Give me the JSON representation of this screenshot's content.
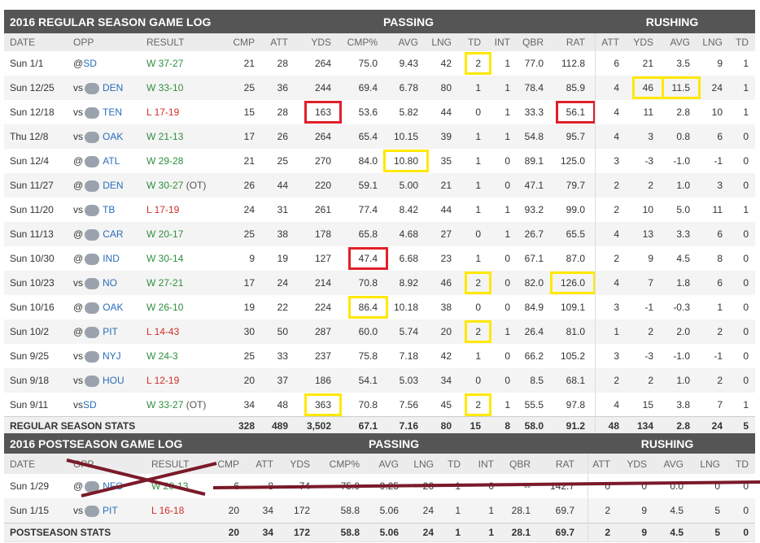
{
  "regular": {
    "title": "2016 REGULAR SEASON GAME LOG",
    "groups": [
      "PASSING",
      "RUSHING"
    ],
    "headers": [
      "DATE",
      "OPP",
      "RESULT",
      "CMP",
      "ATT",
      "YDS",
      "CMP%",
      "AVG",
      "LNG",
      "TD",
      "INT",
      "QBR",
      "RAT",
      "ATT",
      "YDS",
      "AVG",
      "LNG",
      "TD"
    ],
    "rows": [
      {
        "date": "Sun 1/1",
        "opp": {
          "prefix": "@",
          "team": "SD",
          "logo": false
        },
        "result": {
          "outcome": "W",
          "score": "37-27"
        },
        "stats": [
          "21",
          "28",
          "264",
          "75.0",
          "9.43",
          "42",
          "2",
          "1",
          "77.0",
          "112.8",
          "6",
          "21",
          "3.5",
          "9",
          "1"
        ],
        "yellow": [
          6
        ]
      },
      {
        "date": "Sun 12/25",
        "opp": {
          "prefix": "vs",
          "team": "DEN",
          "logo": true
        },
        "result": {
          "outcome": "W",
          "score": "33-10"
        },
        "stats": [
          "25",
          "36",
          "244",
          "69.4",
          "6.78",
          "80",
          "1",
          "1",
          "78.4",
          "85.9",
          "4",
          "46",
          "11.5",
          "24",
          "1"
        ],
        "yellow": [
          11,
          12
        ]
      },
      {
        "date": "Sun 12/18",
        "opp": {
          "prefix": "vs",
          "team": "TEN",
          "logo": true
        },
        "result": {
          "outcome": "L",
          "score": "17-19"
        },
        "stats": [
          "15",
          "28",
          "163",
          "53.6",
          "5.82",
          "44",
          "0",
          "1",
          "33.3",
          "56.1",
          "4",
          "11",
          "2.8",
          "10",
          "1"
        ],
        "red": [
          2,
          9
        ]
      },
      {
        "date": "Thu 12/8",
        "opp": {
          "prefix": "vs",
          "team": "OAK",
          "logo": true
        },
        "result": {
          "outcome": "W",
          "score": "21-13"
        },
        "stats": [
          "17",
          "26",
          "264",
          "65.4",
          "10.15",
          "39",
          "1",
          "1",
          "54.8",
          "95.7",
          "4",
          "3",
          "0.8",
          "6",
          "0"
        ]
      },
      {
        "date": "Sun 12/4",
        "opp": {
          "prefix": "@",
          "team": "ATL",
          "logo": true
        },
        "result": {
          "outcome": "W",
          "score": "29-28"
        },
        "stats": [
          "21",
          "25",
          "270",
          "84.0",
          "10.80",
          "35",
          "1",
          "0",
          "89.1",
          "125.0",
          "3",
          "-3",
          "-1.0",
          "-1",
          "0"
        ],
        "yellow": [
          4
        ]
      },
      {
        "date": "Sun 11/27",
        "opp": {
          "prefix": "@",
          "team": "DEN",
          "logo": true
        },
        "result": {
          "outcome": "W",
          "score": "30-27",
          "note": "(OT)"
        },
        "stats": [
          "26",
          "44",
          "220",
          "59.1",
          "5.00",
          "21",
          "1",
          "0",
          "47.1",
          "79.7",
          "2",
          "2",
          "1.0",
          "3",
          "0"
        ]
      },
      {
        "date": "Sun 11/20",
        "opp": {
          "prefix": "vs",
          "team": "TB",
          "logo": true
        },
        "result": {
          "outcome": "L",
          "score": "17-19"
        },
        "stats": [
          "24",
          "31",
          "261",
          "77.4",
          "8.42",
          "44",
          "1",
          "1",
          "93.2",
          "99.0",
          "2",
          "10",
          "5.0",
          "11",
          "1"
        ]
      },
      {
        "date": "Sun 11/13",
        "opp": {
          "prefix": "@",
          "team": "CAR",
          "logo": true
        },
        "result": {
          "outcome": "W",
          "score": "20-17"
        },
        "stats": [
          "25",
          "38",
          "178",
          "65.8",
          "4.68",
          "27",
          "0",
          "1",
          "26.7",
          "65.5",
          "4",
          "13",
          "3.3",
          "6",
          "0"
        ]
      },
      {
        "date": "Sun 10/30",
        "opp": {
          "prefix": "@",
          "team": "IND",
          "logo": true
        },
        "result": {
          "outcome": "W",
          "score": "30-14"
        },
        "stats": [
          "9",
          "19",
          "127",
          "47.4",
          "6.68",
          "23",
          "1",
          "0",
          "67.1",
          "87.0",
          "2",
          "9",
          "4.5",
          "8",
          "0"
        ],
        "red": [
          3
        ]
      },
      {
        "date": "Sun 10/23",
        "opp": {
          "prefix": "vs",
          "team": "NO",
          "logo": true
        },
        "result": {
          "outcome": "W",
          "score": "27-21"
        },
        "stats": [
          "17",
          "24",
          "214",
          "70.8",
          "8.92",
          "46",
          "2",
          "0",
          "82.0",
          "126.0",
          "4",
          "7",
          "1.8",
          "6",
          "0"
        ],
        "yellow": [
          6,
          9
        ]
      },
      {
        "date": "Sun 10/16",
        "opp": {
          "prefix": "@",
          "team": "OAK",
          "logo": true
        },
        "result": {
          "outcome": "W",
          "score": "26-10"
        },
        "stats": [
          "19",
          "22",
          "224",
          "86.4",
          "10.18",
          "38",
          "0",
          "0",
          "84.9",
          "109.1",
          "3",
          "-1",
          "-0.3",
          "1",
          "0"
        ],
        "yellow": [
          3
        ]
      },
      {
        "date": "Sun 10/2",
        "opp": {
          "prefix": "@",
          "team": "PIT",
          "logo": true
        },
        "result": {
          "outcome": "L",
          "score": "14-43"
        },
        "stats": [
          "30",
          "50",
          "287",
          "60.0",
          "5.74",
          "20",
          "2",
          "1",
          "26.4",
          "81.0",
          "1",
          "2",
          "2.0",
          "2",
          "0"
        ],
        "yellow": [
          6
        ]
      },
      {
        "date": "Sun 9/25",
        "opp": {
          "prefix": "vs",
          "team": "NYJ",
          "logo": true
        },
        "result": {
          "outcome": "W",
          "score": "24-3"
        },
        "stats": [
          "25",
          "33",
          "237",
          "75.8",
          "7.18",
          "42",
          "1",
          "0",
          "66.2",
          "105.2",
          "3",
          "-3",
          "-1.0",
          "-1",
          "0"
        ]
      },
      {
        "date": "Sun 9/18",
        "opp": {
          "prefix": "vs",
          "team": "HOU",
          "logo": true
        },
        "result": {
          "outcome": "L",
          "score": "12-19"
        },
        "stats": [
          "20",
          "37",
          "186",
          "54.1",
          "5.03",
          "34",
          "0",
          "0",
          "8.5",
          "68.1",
          "2",
          "2",
          "1.0",
          "2",
          "0"
        ]
      },
      {
        "date": "Sun 9/11",
        "opp": {
          "prefix": "vs",
          "team": "SD",
          "logo": false
        },
        "result": {
          "outcome": "W",
          "score": "33-27",
          "note": "(OT)"
        },
        "stats": [
          "34",
          "48",
          "363",
          "70.8",
          "7.56",
          "45",
          "2",
          "1",
          "55.5",
          "97.8",
          "4",
          "15",
          "3.8",
          "7",
          "1"
        ],
        "yellow": [
          2,
          6
        ]
      }
    ],
    "totals": {
      "label": "REGULAR SEASON STATS",
      "stats": [
        "328",
        "489",
        "3,502",
        "67.1",
        "7.16",
        "80",
        "15",
        "8",
        "58.0",
        "91.2",
        "48",
        "134",
        "2.8",
        "24",
        "5"
      ]
    }
  },
  "postseason": {
    "title": "2016 POSTSEASON GAME LOG",
    "groups": [
      "PASSING",
      "RUSHING"
    ],
    "headers": [
      "DATE",
      "OPP",
      "RESULT",
      "CMP",
      "ATT",
      "YDS",
      "CMP%",
      "AVG",
      "LNG",
      "TD",
      "INT",
      "QBR",
      "RAT",
      "ATT",
      "YDS",
      "AVG",
      "LNG",
      "TD"
    ],
    "rows": [
      {
        "date": "Sun 1/29",
        "opp": {
          "prefix": "@",
          "team": "NFC",
          "logo": true
        },
        "result": {
          "outcome": "W",
          "score": "20-13"
        },
        "stats": [
          "6",
          "8",
          "74",
          "75.0",
          "9.25",
          "26",
          "1",
          "0",
          "--",
          "142.7",
          "0",
          "0",
          "0.0",
          "0",
          "0"
        ]
      },
      {
        "date": "Sun 1/15",
        "opp": {
          "prefix": "vs",
          "team": "PIT",
          "logo": true
        },
        "result": {
          "outcome": "L",
          "score": "16-18"
        },
        "stats": [
          "20",
          "34",
          "172",
          "58.8",
          "5.06",
          "24",
          "1",
          "1",
          "28.1",
          "69.7",
          "2",
          "9",
          "4.5",
          "5",
          "0"
        ]
      }
    ],
    "totals": {
      "label": "POSTSEASON STATS",
      "stats": [
        "20",
        "34",
        "172",
        "58.8",
        "5.06",
        "24",
        "1",
        "1",
        "28.1",
        "69.7",
        "2",
        "9",
        "4.5",
        "5",
        "0"
      ]
    }
  }
}
